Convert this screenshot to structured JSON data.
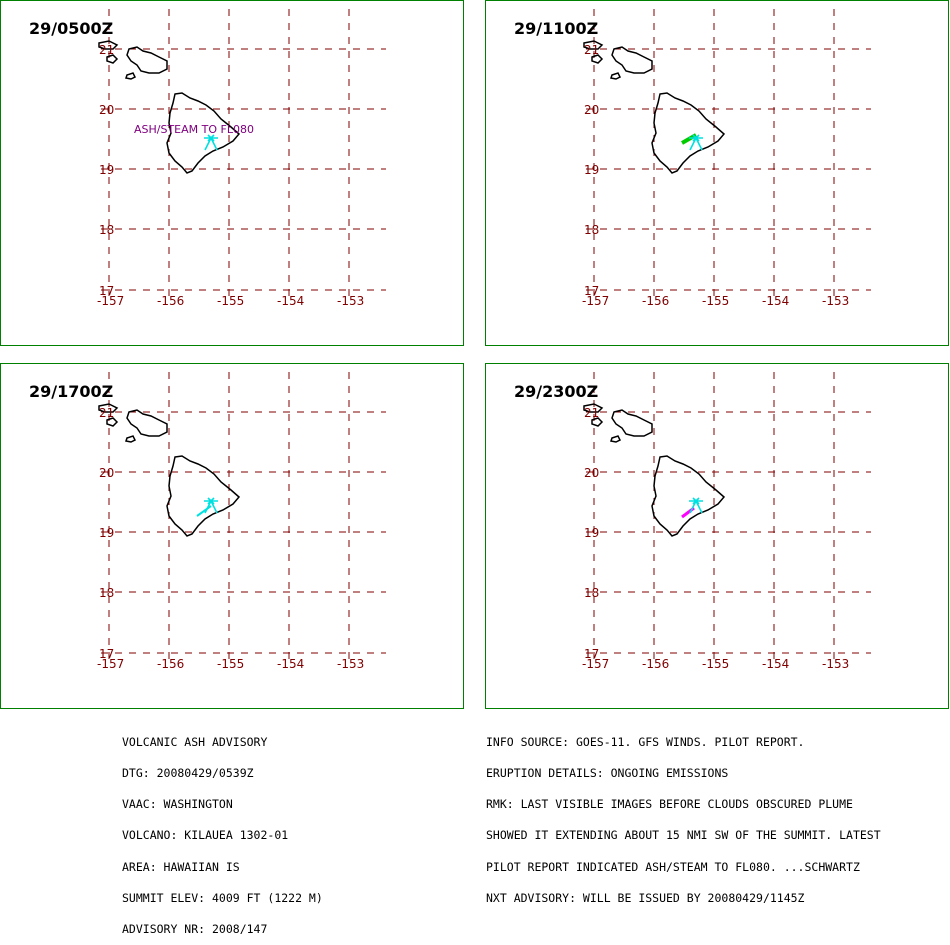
{
  "panels": [
    {
      "time": "29/0500Z",
      "annotation": "ASH/STEAM TO FL080"
    },
    {
      "time": "29/1100Z",
      "annotation": ""
    },
    {
      "time": "29/1700Z",
      "annotation": ""
    },
    {
      "time": "29/2300Z",
      "annotation": ""
    }
  ],
  "lat_labels": [
    "21",
    "20",
    "19",
    "18",
    "17"
  ],
  "lon_labels": [
    "-157",
    "-156",
    "-155",
    "-154",
    "-153"
  ],
  "colors": {
    "grid": "#800000",
    "border": "#008000",
    "coast": "#000000",
    "annotation": "#800080",
    "volcano": "#00e0e0",
    "plume_green": "#00cc00",
    "plume_magenta": "#ff00ff"
  },
  "advisory_left": [
    "VOLCANIC ASH ADVISORY",
    "DTG: 20080429/0539Z",
    "VAAC: WASHINGTON",
    "VOLCANO: KILAUEA 1302-01",
    "AREA: HAWAIIAN IS",
    "SUMMIT ELEV: 4009 FT (1222 M)",
    "ADVISORY NR: 2008/147"
  ],
  "advisory_right": [
    "INFO SOURCE: GOES-11. GFS WINDS. PILOT REPORT.",
    "ERUPTION DETAILS: ONGOING EMISSIONS",
    "RMK: LAST VISIBLE IMAGES BEFORE CLOUDS OBSCURED PLUME",
    "SHOWED IT EXTENDING ABOUT 15 NMI SW OF THE SUMMIT. LATEST",
    "PILOT REPORT INDICATED ASH/STEAM TO FL080. ...SCHWARTZ",
    "NXT ADVISORY: WILL BE ISSUED BY 20080429/1145Z"
  ]
}
